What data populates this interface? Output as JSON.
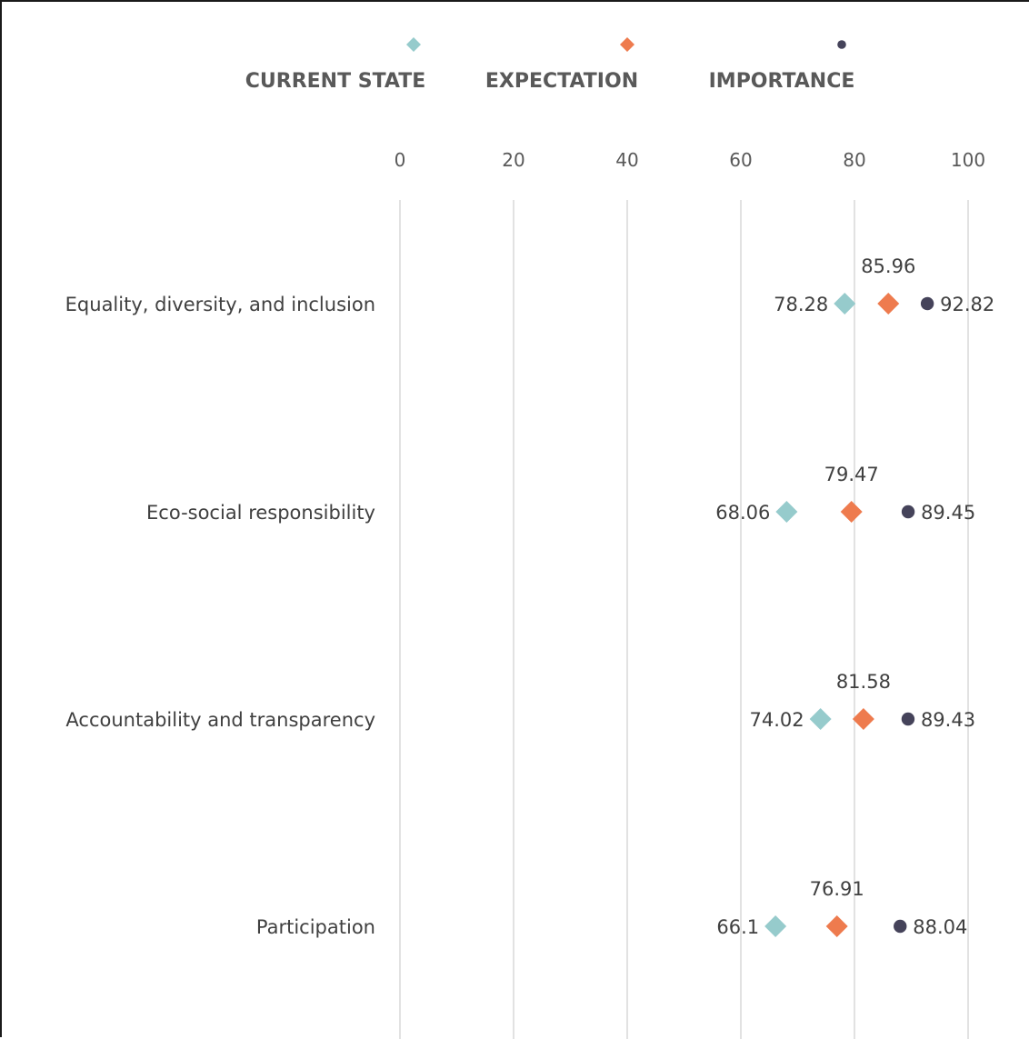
{
  "chart_data": {
    "type": "scatter",
    "orientation": "horizontal",
    "categories": [
      "Equality, diversity, and inclusion",
      "Eco-social responsibility",
      "Accountability and transparency",
      "Participation"
    ],
    "series": [
      {
        "name": "CURRENT STATE",
        "marker": "diamond",
        "color": "#96CBCC",
        "values": [
          78.28,
          68.06,
          74.02,
          66.1
        ]
      },
      {
        "name": "EXPECTATION",
        "marker": "diamond",
        "color": "#EE7B4E",
        "values": [
          85.96,
          79.47,
          81.58,
          76.91
        ]
      },
      {
        "name": "IMPORTANCE",
        "marker": "circle",
        "color": "#45435A",
        "values": [
          92.82,
          89.45,
          89.43,
          88.04
        ]
      }
    ],
    "x_ticks": [
      0,
      20,
      40,
      60,
      80,
      100
    ],
    "xlim": [
      0,
      100
    ],
    "x_axis_position": "top",
    "grid": true,
    "legend_position": "top",
    "title": "",
    "xlabel": "",
    "ylabel": ""
  }
}
